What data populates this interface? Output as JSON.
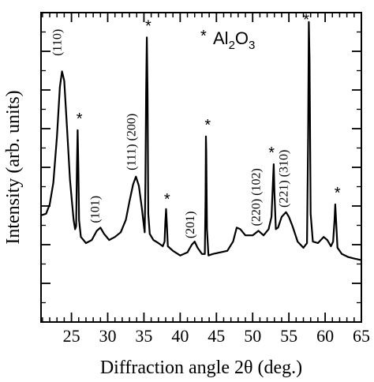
{
  "chart_data": {
    "type": "line",
    "xlabel": "Diffraction angle 2θ (deg.)",
    "ylabel": "Intensity (arb. units)",
    "xlim": [
      20.8,
      65
    ],
    "ylim": [
      0,
      1
    ],
    "xticks": [
      25,
      30,
      35,
      40,
      45,
      50,
      55,
      60,
      65
    ],
    "x_minor_step": 1,
    "y_ticks_labeled": false,
    "legend": {
      "marker": "*",
      "text_main": "Al",
      "sub_1": "2",
      "text_mid": "O",
      "sub_2": "3",
      "position": "top-right"
    },
    "series": [
      {
        "points": [
          [
            20.8,
            0.345
          ],
          [
            21.5,
            0.35
          ],
          [
            22.0,
            0.38
          ],
          [
            22.5,
            0.45
          ],
          [
            23.0,
            0.6
          ],
          [
            23.4,
            0.76
          ],
          [
            23.7,
            0.81
          ],
          [
            24.0,
            0.78
          ],
          [
            24.4,
            0.62
          ],
          [
            24.8,
            0.46
          ],
          [
            25.1,
            0.38
          ],
          [
            25.3,
            0.33
          ],
          [
            25.5,
            0.3
          ],
          [
            25.65,
            0.31
          ],
          [
            25.75,
            0.5
          ],
          [
            25.85,
            0.62
          ],
          [
            25.95,
            0.5
          ],
          [
            26.05,
            0.33
          ],
          [
            26.3,
            0.275
          ],
          [
            27.0,
            0.255
          ],
          [
            27.8,
            0.265
          ],
          [
            28.5,
            0.295
          ],
          [
            29.0,
            0.305
          ],
          [
            29.5,
            0.285
          ],
          [
            30.2,
            0.265
          ],
          [
            31.0,
            0.275
          ],
          [
            31.8,
            0.29
          ],
          [
            32.5,
            0.33
          ],
          [
            33.0,
            0.39
          ],
          [
            33.5,
            0.445
          ],
          [
            33.9,
            0.47
          ],
          [
            34.3,
            0.44
          ],
          [
            34.7,
            0.37
          ],
          [
            35.0,
            0.31
          ],
          [
            35.1,
            0.29
          ],
          [
            35.2,
            0.45
          ],
          [
            35.3,
            0.74
          ],
          [
            35.4,
            0.92
          ],
          [
            35.5,
            0.74
          ],
          [
            35.6,
            0.35
          ],
          [
            35.8,
            0.285
          ],
          [
            36.3,
            0.265
          ],
          [
            37.0,
            0.255
          ],
          [
            37.6,
            0.245
          ],
          [
            37.85,
            0.26
          ],
          [
            37.95,
            0.32
          ],
          [
            38.05,
            0.365
          ],
          [
            38.15,
            0.32
          ],
          [
            38.3,
            0.245
          ],
          [
            39.0,
            0.23
          ],
          [
            40.0,
            0.215
          ],
          [
            41.0,
            0.225
          ],
          [
            41.6,
            0.25
          ],
          [
            42.0,
            0.26
          ],
          [
            42.4,
            0.24
          ],
          [
            43.0,
            0.22
          ],
          [
            43.4,
            0.22
          ],
          [
            43.5,
            0.4
          ],
          [
            43.55,
            0.6
          ],
          [
            43.6,
            0.55
          ],
          [
            43.7,
            0.3
          ],
          [
            43.9,
            0.215
          ],
          [
            44.5,
            0.22
          ],
          [
            45.5,
            0.225
          ],
          [
            46.5,
            0.23
          ],
          [
            47.3,
            0.26
          ],
          [
            47.8,
            0.305
          ],
          [
            48.3,
            0.3
          ],
          [
            49.0,
            0.28
          ],
          [
            50.0,
            0.28
          ],
          [
            50.8,
            0.295
          ],
          [
            51.5,
            0.28
          ],
          [
            52.2,
            0.3
          ],
          [
            52.6,
            0.34
          ],
          [
            52.8,
            0.45
          ],
          [
            52.9,
            0.51
          ],
          [
            53.0,
            0.42
          ],
          [
            53.2,
            0.3
          ],
          [
            53.5,
            0.305
          ],
          [
            54.0,
            0.34
          ],
          [
            54.6,
            0.355
          ],
          [
            55.0,
            0.34
          ],
          [
            55.5,
            0.31
          ],
          [
            56.2,
            0.26
          ],
          [
            57.0,
            0.24
          ],
          [
            57.5,
            0.255
          ],
          [
            57.65,
            0.6
          ],
          [
            57.75,
            0.97
          ],
          [
            57.85,
            0.85
          ],
          [
            58.0,
            0.35
          ],
          [
            58.3,
            0.26
          ],
          [
            59.0,
            0.255
          ],
          [
            59.8,
            0.275
          ],
          [
            60.3,
            0.265
          ],
          [
            60.8,
            0.245
          ],
          [
            61.1,
            0.26
          ],
          [
            61.3,
            0.33
          ],
          [
            61.4,
            0.38
          ],
          [
            61.5,
            0.33
          ],
          [
            61.7,
            0.24
          ],
          [
            62.3,
            0.22
          ],
          [
            63.2,
            0.21
          ],
          [
            64.0,
            0.205
          ],
          [
            65.0,
            0.2
          ]
        ]
      }
    ],
    "annotations": [
      {
        "text": "(110)",
        "x": 23.6,
        "y": 0.86,
        "kind": "hkl"
      },
      {
        "text": "(101)",
        "x": 28.8,
        "y": 0.32,
        "kind": "hkl"
      },
      {
        "text": "(111) (200)",
        "x": 33.8,
        "y": 0.49,
        "kind": "hkl"
      },
      {
        "text": "(201)",
        "x": 41.9,
        "y": 0.27,
        "kind": "hkl"
      },
      {
        "text": "(220) (102)",
        "x": 51.0,
        "y": 0.31,
        "kind": "hkl"
      },
      {
        "text": "(221) (310)",
        "x": 54.8,
        "y": 0.37,
        "kind": "hkl"
      },
      {
        "text": "*",
        "x": 26.1,
        "y": 0.64,
        "kind": "alumina"
      },
      {
        "text": "*",
        "x": 35.6,
        "y": 0.94,
        "kind": "alumina"
      },
      {
        "text": "*",
        "x": 38.2,
        "y": 0.38,
        "kind": "alumina"
      },
      {
        "text": "*",
        "x": 43.8,
        "y": 0.62,
        "kind": "alumina"
      },
      {
        "text": "*",
        "x": 52.6,
        "y": 0.53,
        "kind": "alumina"
      },
      {
        "text": "*",
        "x": 57.4,
        "y": 0.96,
        "kind": "alumina"
      },
      {
        "text": "*",
        "x": 61.7,
        "y": 0.4,
        "kind": "alumina"
      }
    ]
  }
}
